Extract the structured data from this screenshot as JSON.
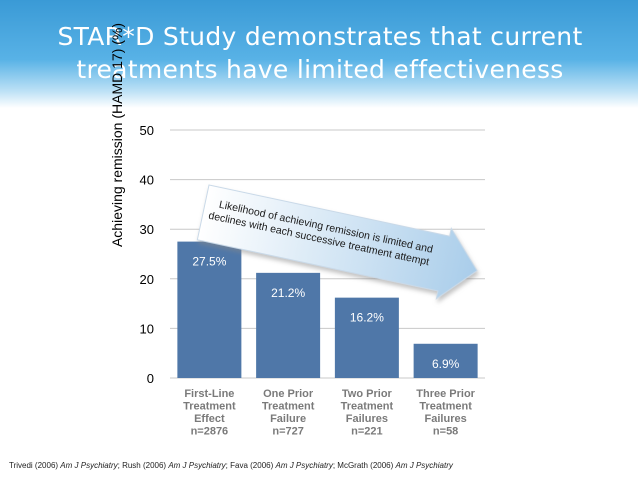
{
  "slide": {
    "title_line1": "STAR*D Study demonstrates that current",
    "title_line2": "treatments have limited effectiveness"
  },
  "chart_data": {
    "type": "bar",
    "title": "STAR*D Study demonstrates that current treatments have limited effectiveness",
    "ylabel": "Achieving remission (HAMD 17) (%)",
    "xlabel": "",
    "ylim": [
      0,
      50
    ],
    "yticks": [
      0,
      10,
      20,
      30,
      40,
      50
    ],
    "grid": true,
    "categories": [
      [
        "First-Line",
        "Treatment",
        "Effect",
        "n=2876"
      ],
      [
        "One Prior",
        "Treatment",
        "Failure",
        "n=727"
      ],
      [
        "Two Prior",
        "Treatment",
        "Failures",
        "n=221"
      ],
      [
        "Three Prior",
        "Treatment",
        "Failures",
        "n=58"
      ]
    ],
    "values": [
      27.5,
      21.2,
      16.2,
      6.9
    ],
    "value_labels": [
      "27.5%",
      "21.2%",
      "16.2%",
      "6.9%"
    ],
    "bar_color": "#4f77a8",
    "annotation": {
      "line1": "Likelihood of achieving remission is limited and",
      "line2": "declines with each successive treatment attempt"
    }
  },
  "citation": {
    "a": "Trivedi (2006) ",
    "a_j": "Am J Psychiatry",
    "b": "; Rush (2006) ",
    "b_j": "Am J Psychiatry",
    "c": "; Fava  (2006) ",
    "c_j": "Am J Psychiatry",
    "d": "; McGrath (2006) ",
    "d_j": "Am J Psychiatry"
  }
}
